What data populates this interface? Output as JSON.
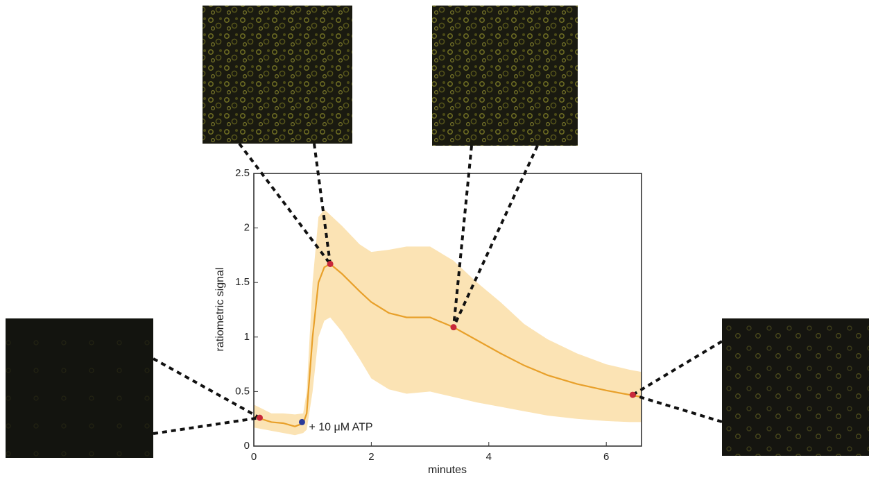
{
  "chart_data": {
    "type": "line",
    "x_label": "minutes",
    "y_label": "ratiometric signal",
    "annotation": "+ 10 μM ATP",
    "xlim": [
      0,
      6.6
    ],
    "ylim": [
      0,
      2.5
    ],
    "xticks": [
      0,
      2,
      4,
      6
    ],
    "yticks": [
      0,
      0.5,
      1,
      1.5,
      2,
      2.5
    ],
    "line_color": "#e8a02a",
    "band_color": "#fbe3b4",
    "x": [
      0,
      0.3,
      0.5,
      0.7,
      0.84,
      0.9,
      1.0,
      1.1,
      1.2,
      1.3,
      1.5,
      1.8,
      2.0,
      2.3,
      2.6,
      3.0,
      3.4,
      3.8,
      4.2,
      4.6,
      5.0,
      5.5,
      6.0,
      6.4,
      6.6
    ],
    "mean": [
      0.27,
      0.22,
      0.21,
      0.18,
      0.21,
      0.3,
      1.0,
      1.5,
      1.64,
      1.67,
      1.58,
      1.42,
      1.32,
      1.22,
      1.18,
      1.18,
      1.09,
      0.97,
      0.85,
      0.74,
      0.65,
      0.57,
      0.51,
      0.47,
      0.45
    ],
    "upper": [
      0.38,
      0.3,
      0.3,
      0.29,
      0.3,
      0.5,
      1.5,
      2.1,
      2.17,
      2.12,
      2.02,
      1.85,
      1.78,
      1.8,
      1.83,
      1.83,
      1.7,
      1.5,
      1.32,
      1.12,
      0.98,
      0.85,
      0.75,
      0.7,
      0.68
    ],
    "lower": [
      0.17,
      0.14,
      0.12,
      0.1,
      0.12,
      0.15,
      0.5,
      1.0,
      1.15,
      1.18,
      1.05,
      0.8,
      0.62,
      0.52,
      0.48,
      0.5,
      0.45,
      0.4,
      0.36,
      0.32,
      0.28,
      0.25,
      0.23,
      0.22,
      0.22
    ],
    "markers": [
      {
        "x": 0.1,
        "y": 0.26,
        "color": "#c8283a"
      },
      {
        "x": 0.82,
        "y": 0.22,
        "color": "#2a3a9a"
      },
      {
        "x": 1.3,
        "y": 1.67,
        "color": "#c8283a"
      },
      {
        "x": 3.4,
        "y": 1.09,
        "color": "#c8283a"
      },
      {
        "x": 6.45,
        "y": 0.47,
        "color": "#c8283a"
      }
    ]
  }
}
